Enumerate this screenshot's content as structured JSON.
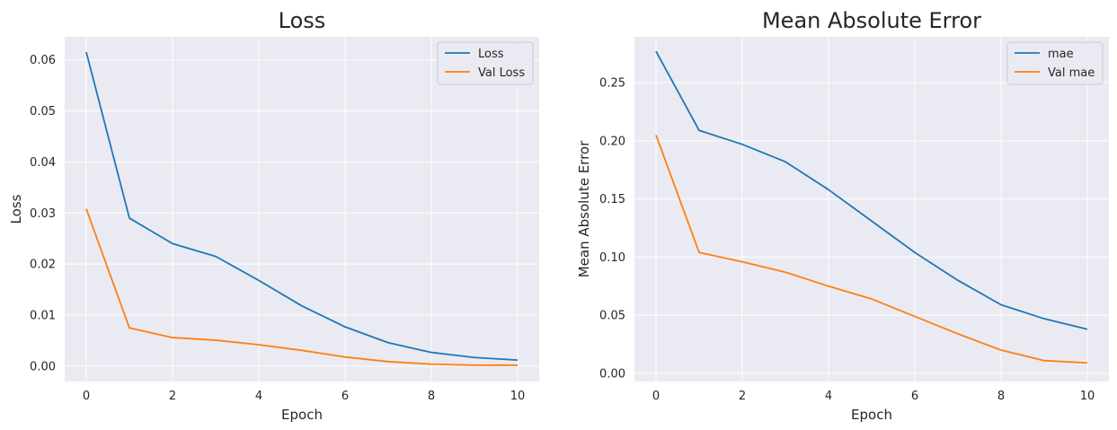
{
  "chart_data": [
    {
      "type": "line",
      "title": "Loss",
      "xlabel": "Epoch",
      "ylabel": "Loss",
      "xlim": [
        -0.5,
        10.5
      ],
      "ylim": [
        -0.003,
        0.0645
      ],
      "xticks": [
        0,
        2,
        4,
        6,
        8,
        10
      ],
      "xtick_labels": [
        "0",
        "2",
        "4",
        "6",
        "8",
        "10"
      ],
      "yticks": [
        0.0,
        0.01,
        0.02,
        0.03,
        0.04,
        0.05,
        0.06
      ],
      "ytick_labels": [
        "0.00",
        "0.01",
        "0.02",
        "0.03",
        "0.04",
        "0.05",
        "0.06"
      ],
      "grid": true,
      "legend_position": "top-right",
      "x": [
        0,
        1,
        2,
        3,
        4,
        5,
        6,
        7,
        8,
        9,
        10
      ],
      "series": [
        {
          "name": "Loss",
          "color": "#1f77b4",
          "values": [
            0.0615,
            0.029,
            0.024,
            0.0215,
            0.0168,
            0.0118,
            0.0077,
            0.0046,
            0.0027,
            0.0017,
            0.0012
          ]
        },
        {
          "name": "Val Loss",
          "color": "#ff7f0e",
          "values": [
            0.0308,
            0.0075,
            0.0056,
            0.0051,
            0.0042,
            0.0031,
            0.0018,
            0.0009,
            0.0004,
            0.0002,
            0.0002
          ]
        }
      ]
    },
    {
      "type": "line",
      "title": "Mean Absolute Error",
      "xlabel": "Epoch",
      "ylabel": "Mean Absolute Error",
      "xlim": [
        -0.5,
        10.5
      ],
      "ylim": [
        -0.007,
        0.2895
      ],
      "xticks": [
        0,
        2,
        4,
        6,
        8,
        10
      ],
      "xtick_labels": [
        "0",
        "2",
        "4",
        "6",
        "8",
        "10"
      ],
      "yticks": [
        0.0,
        0.05,
        0.1,
        0.15,
        0.2,
        0.25
      ],
      "ytick_labels": [
        "0.00",
        "0.05",
        "0.10",
        "0.15",
        "0.20",
        "0.25"
      ],
      "grid": true,
      "legend_position": "top-right",
      "x": [
        0,
        1,
        2,
        3,
        4,
        5,
        6,
        7,
        8,
        9,
        10
      ],
      "series": [
        {
          "name": "mae",
          "color": "#1f77b4",
          "values": [
            0.277,
            0.209,
            0.197,
            0.182,
            0.158,
            0.131,
            0.104,
            0.08,
            0.059,
            0.047,
            0.038
          ]
        },
        {
          "name": "Val mae",
          "color": "#ff7f0e",
          "values": [
            0.205,
            0.104,
            0.096,
            0.087,
            0.075,
            0.064,
            0.049,
            0.034,
            0.02,
            0.011,
            0.009
          ]
        }
      ]
    }
  ]
}
